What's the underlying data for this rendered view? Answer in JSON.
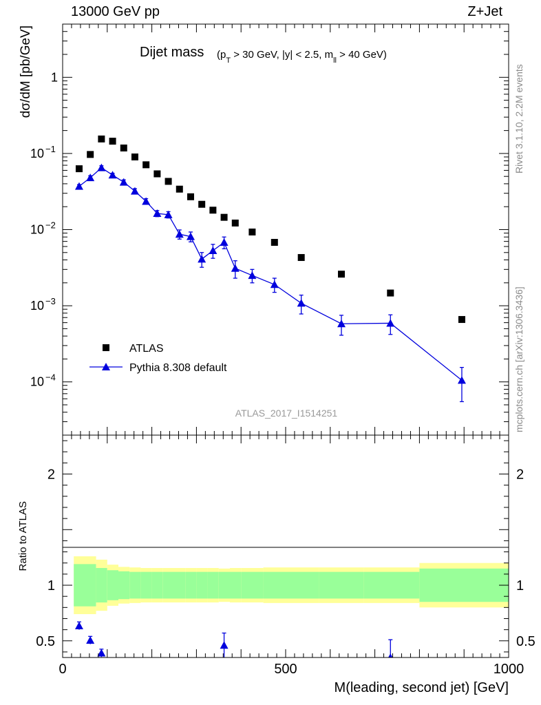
{
  "header": {
    "left": "13000 GeV pp",
    "right": "Z+Jet"
  },
  "side_labels": {
    "top": "Rivet 3.1.10,  2.2M events",
    "bottom": "mcplots.cern.ch [arXiv:1306.3436]"
  },
  "colors": {
    "data": "#000000",
    "mc": "#0000dd",
    "band_inner": "#99ff99",
    "band_outer": "#ffff99",
    "watermark": "#999999"
  },
  "chart_data": [
    {
      "type": "scatter",
      "title": "Dijet mass",
      "title_detail": [
        "(p",
        "T",
        " > 30 GeV, |y| < 2.5, m",
        "ll",
        " > 40 GeV)"
      ],
      "ylabel": "dσ/dM [pb/GeV]",
      "watermark": "ATLAS_2017_I1514251",
      "xlim": [
        0,
        1000
      ],
      "ylim": [
        2e-05,
        5
      ],
      "yscale": "log",
      "ytick_labels": [
        {
          "base": "10",
          "exp": "−4"
        },
        {
          "base": "10",
          "exp": "−3"
        },
        {
          "base": "10",
          "exp": "−2"
        },
        {
          "base": "10",
          "exp": "−1"
        },
        {
          "base": "1",
          "exp": ""
        }
      ],
      "legend": [
        "ATLAS",
        "Pythia 8.308 default"
      ],
      "legend_position": "bottom-left",
      "series": [
        {
          "name": "ATLAS",
          "marker": "square",
          "x": [
            37,
            62,
            87,
            112,
            137,
            162,
            187,
            212,
            237,
            262,
            287,
            312,
            337,
            362,
            387,
            425,
            475,
            535,
            625,
            735,
            895
          ],
          "y": [
            0.063,
            0.097,
            0.155,
            0.145,
            0.118,
            0.09,
            0.071,
            0.054,
            0.043,
            0.034,
            0.027,
            0.0215,
            0.018,
            0.0145,
            0.0122,
            0.0093,
            0.0068,
            0.0043,
            0.0026,
            0.00147,
            0.00066
          ]
        },
        {
          "name": "Pythia 8.308 default",
          "marker": "triangle",
          "x": [
            37,
            62,
            87,
            112,
            137,
            162,
            187,
            212,
            237,
            262,
            287,
            312,
            337,
            362,
            387,
            425,
            475,
            535,
            625,
            735,
            895
          ],
          "y": [
            0.037,
            0.048,
            0.065,
            0.052,
            0.042,
            0.032,
            0.0235,
            0.0163,
            0.0157,
            0.0087,
            0.0081,
            0.0041,
            0.0053,
            0.0068,
            0.0031,
            0.0025,
            0.0019,
            0.00108,
            0.00058,
            0.00059,
            0.000105
          ],
          "yerr": [
            0.002,
            0.003,
            0.004,
            0.003,
            0.003,
            0.0025,
            0.002,
            0.0015,
            0.0015,
            0.0012,
            0.0012,
            0.0009,
            0.0011,
            0.0012,
            0.0008,
            0.0005,
            0.0004,
            0.0003,
            0.00017,
            0.00017,
            5e-05
          ]
        }
      ]
    },
    {
      "type": "scatter",
      "title": "",
      "xlabel": "M(leading, second jet) [GeV]",
      "ylabel": "Ratio to ATLAS",
      "xlim": [
        0,
        1000
      ],
      "ylim": [
        0.35,
        2.35
      ],
      "xtick_labels": [
        "0",
        "500",
        "1000"
      ],
      "ytick_labels": [
        "0.5",
        "1",
        "2"
      ],
      "bands": {
        "edges": [
          25,
          75,
          100,
          125,
          150,
          175,
          200,
          225,
          250,
          275,
          300,
          325,
          350,
          375,
          400,
          450,
          500,
          575,
          675,
          800,
          1000
        ],
        "inner": [
          0.19,
          0.155,
          0.135,
          0.125,
          0.12,
          0.12,
          0.12,
          0.12,
          0.12,
          0.12,
          0.12,
          0.12,
          0.12,
          0.12,
          0.12,
          0.12,
          0.12,
          0.12,
          0.12,
          0.15
        ],
        "outer": [
          0.26,
          0.23,
          0.185,
          0.165,
          0.16,
          0.155,
          0.155,
          0.155,
          0.155,
          0.155,
          0.155,
          0.155,
          0.15,
          0.155,
          0.155,
          0.16,
          0.16,
          0.16,
          0.16,
          0.2
        ]
      },
      "series": [
        {
          "name": "Pythia 8.308 default",
          "marker": "triangle",
          "x": [
            37,
            62,
            87,
            362,
            735
          ],
          "y": [
            0.635,
            0.505,
            0.39,
            0.46,
            0.35
          ],
          "yerr_lo": [
            0.035,
            0.035,
            0.035,
            0.11,
            0.35
          ],
          "yerr_hi": [
            0.035,
            0.035,
            0.035,
            0.11,
            0.16
          ]
        }
      ]
    }
  ]
}
